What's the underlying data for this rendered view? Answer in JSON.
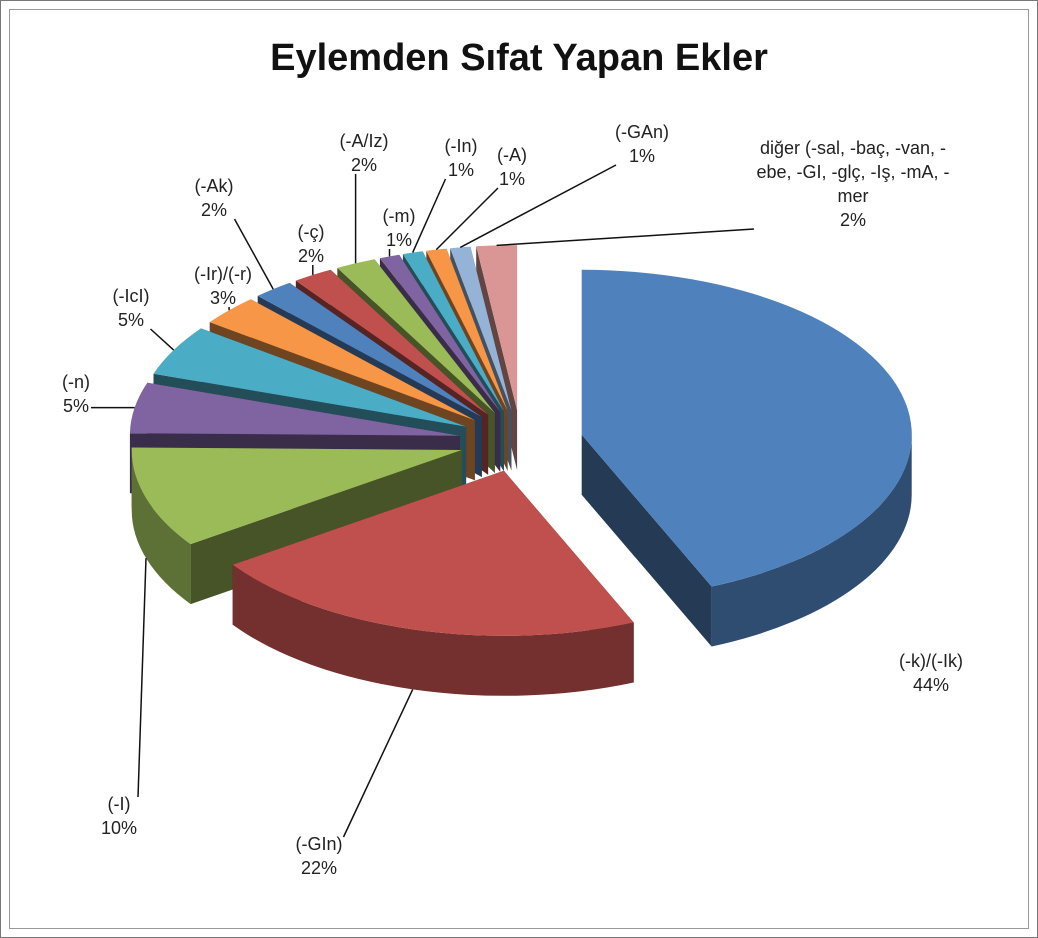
{
  "chart_data": {
    "type": "pie3d",
    "title": "Eylemden Sıfat Yapan Ekler",
    "categories": [
      "(-k)/(-Ik)",
      "(-GIn)",
      "(-I)",
      "(-n)",
      "(-IcI)",
      "(-Ir)/(-r)",
      "(-Ak)",
      "(-ç)",
      "(-A/Iz)",
      "(-m)",
      "(-In)",
      "(-A)",
      "(-GAn)",
      "diğer (-sal, -baç, -van, -ebe, -GI, -glç, -Iş, -mA, -mer"
    ],
    "values": [
      44,
      22,
      10,
      5,
      5,
      3,
      2,
      2,
      2,
      1,
      1,
      1,
      1,
      2
    ],
    "value_labels": [
      "44%",
      "22%",
      "10%",
      "5%",
      "5%",
      "3%",
      "2%",
      "2%",
      "2%",
      "1%",
      "1%",
      "1%",
      "1%",
      "2%"
    ],
    "colors": [
      "#4f81bd",
      "#c0504d",
      "#9bbb59",
      "#8064a2",
      "#4bacc6",
      "#f79646",
      "#4f81bd",
      "#c0504d",
      "#9bbb59",
      "#8064a2",
      "#4bacc6",
      "#f79646",
      "#95b3d7",
      "#d99694"
    ]
  }
}
